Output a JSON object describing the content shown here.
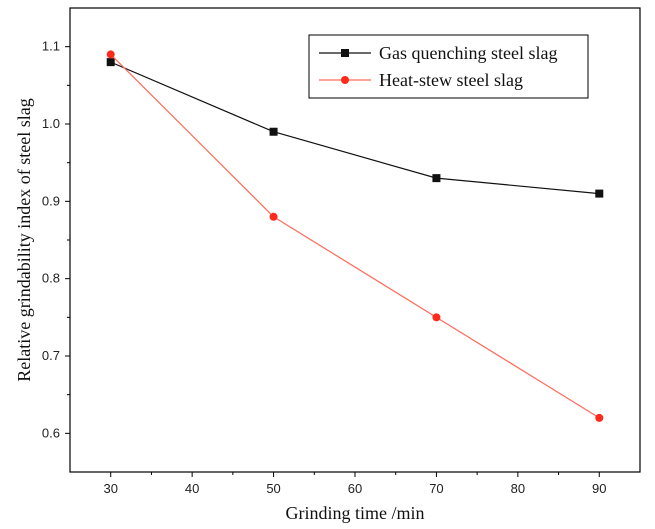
{
  "chart_data": {
    "type": "line",
    "xlabel": "Grinding time /min",
    "ylabel": "Relative grindability index of steel slag",
    "xlim": [
      25,
      95
    ],
    "ylim": [
      0.55,
      1.15
    ],
    "xticks": [
      30,
      40,
      50,
      60,
      70,
      80,
      90
    ],
    "xtick_labels": [
      "30",
      "40",
      "50",
      "60",
      "70",
      "80",
      "90"
    ],
    "yticks": [
      0.6,
      0.7,
      0.8,
      0.9,
      1.0,
      1.1
    ],
    "ytick_labels": [
      "0.6",
      "0.7",
      "0.8",
      "0.9",
      "1.0",
      "1.1"
    ],
    "grid": false,
    "legend_position": "top-right",
    "series": [
      {
        "name": "Gas quenching steel slag",
        "color": "#111111",
        "marker": "square",
        "x": [
          30,
          50,
          70,
          90
        ],
        "values": [
          1.08,
          0.99,
          0.93,
          0.91
        ]
      },
      {
        "name": "Heat-stew steel slag",
        "color": "#ff2a1a",
        "marker": "circle",
        "x": [
          30,
          50,
          70,
          90
        ],
        "values": [
          1.09,
          0.88,
          0.75,
          0.62
        ]
      }
    ]
  }
}
